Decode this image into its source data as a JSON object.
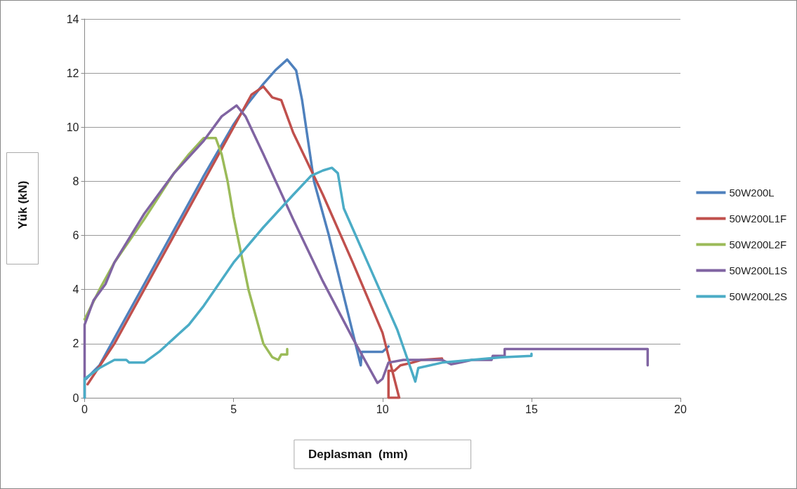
{
  "chart_data": {
    "type": "line",
    "xlabel": "Deplasman  (mm)",
    "ylabel": "Yük (kN)",
    "xlim": [
      0,
      20
    ],
    "xticks": [
      0,
      5,
      10,
      15,
      20
    ],
    "ylim": [
      0,
      14
    ],
    "yticks": [
      0,
      2,
      4,
      6,
      8,
      10,
      12,
      14
    ],
    "grid": "y",
    "legend": "right",
    "marker": "none",
    "line_style": "solid",
    "series": [
      {
        "name": "50W200L",
        "color": "#4f81bd",
        "x": [
          0.05,
          0.5,
          1,
          2,
          3,
          4,
          5,
          5.5,
          6,
          6.4,
          6.8,
          7.1,
          7.3,
          7.7,
          8.2,
          9.27,
          9.3,
          10,
          10.2
        ],
        "values": [
          0.7,
          1.2,
          2.2,
          4.2,
          6.2,
          8.2,
          10.1,
          10.9,
          11.6,
          12.1,
          12.5,
          12.1,
          11,
          8,
          6,
          1.2,
          1.7,
          1.7,
          1.9
        ]
      },
      {
        "name": "50W200L1F",
        "color": "#c0504d",
        "x": [
          0.1,
          1,
          2,
          3,
          4,
          5,
          5.6,
          6,
          6.3,
          6.6,
          7,
          8,
          9,
          10,
          10.56,
          10.2,
          10.2,
          10.4,
          10.6,
          11,
          11.3,
          12
        ],
        "values": [
          0.5,
          2,
          4,
          6,
          8,
          10,
          11.2,
          11.5,
          11.1,
          11,
          9.8,
          7.5,
          5,
          2.4,
          0,
          0,
          1,
          1,
          1.2,
          1.3,
          1.4,
          1.45
        ]
      },
      {
        "name": "50W200L2F",
        "color": "#9bbb59",
        "x": [
          0,
          0.5,
          1,
          1.5,
          2,
          3,
          3.5,
          4,
          4.4,
          4.6,
          4.8,
          5,
          5.5,
          6,
          6.3,
          6.5,
          6.6,
          6.8,
          6.8
        ],
        "values": [
          2.9,
          4,
          5,
          5.8,
          6.6,
          8.3,
          9,
          9.6,
          9.6,
          9,
          8,
          6.7,
          4,
          2,
          1.5,
          1.4,
          1.6,
          1.6,
          1.8
        ]
      },
      {
        "name": "50W200L1S",
        "color": "#8064a2",
        "x": [
          0,
          0,
          0.3,
          0.7,
          1,
          2,
          3,
          4,
          4.6,
          5.1,
          5.4,
          6,
          7,
          8,
          9,
          9.83,
          10,
          10.2,
          10.7,
          12,
          12.3,
          12.6,
          13,
          13.66,
          13.7,
          14.1,
          14.1,
          18.9,
          18.9
        ],
        "values": [
          0,
          2.7,
          3.6,
          4.2,
          5,
          6.8,
          8.3,
          9.5,
          10.4,
          10.8,
          10.4,
          9,
          6.6,
          4.3,
          2.2,
          0.55,
          0.7,
          1.3,
          1.4,
          1.4,
          1.24,
          1.3,
          1.4,
          1.4,
          1.55,
          1.55,
          1.8,
          1.8,
          1.2
        ]
      },
      {
        "name": "50W200L2S",
        "color": "#4bacc6",
        "x": [
          0,
          0,
          0.5,
          1,
          1.4,
          1.5,
          2,
          2.5,
          3,
          3.5,
          4,
          5,
          6,
          7,
          7.6,
          8,
          8.3,
          8.5,
          8.7,
          9.5,
          10.5,
          11.1,
          11.2,
          12,
          13,
          14,
          15,
          15
        ],
        "values": [
          0,
          0.7,
          1.1,
          1.4,
          1.4,
          1.3,
          1.3,
          1.7,
          2.2,
          2.7,
          3.4,
          5,
          6.3,
          7.5,
          8.2,
          8.4,
          8.5,
          8.3,
          7,
          5,
          2.5,
          0.6,
          1.1,
          1.3,
          1.4,
          1.5,
          1.55,
          1.63
        ]
      }
    ]
  }
}
